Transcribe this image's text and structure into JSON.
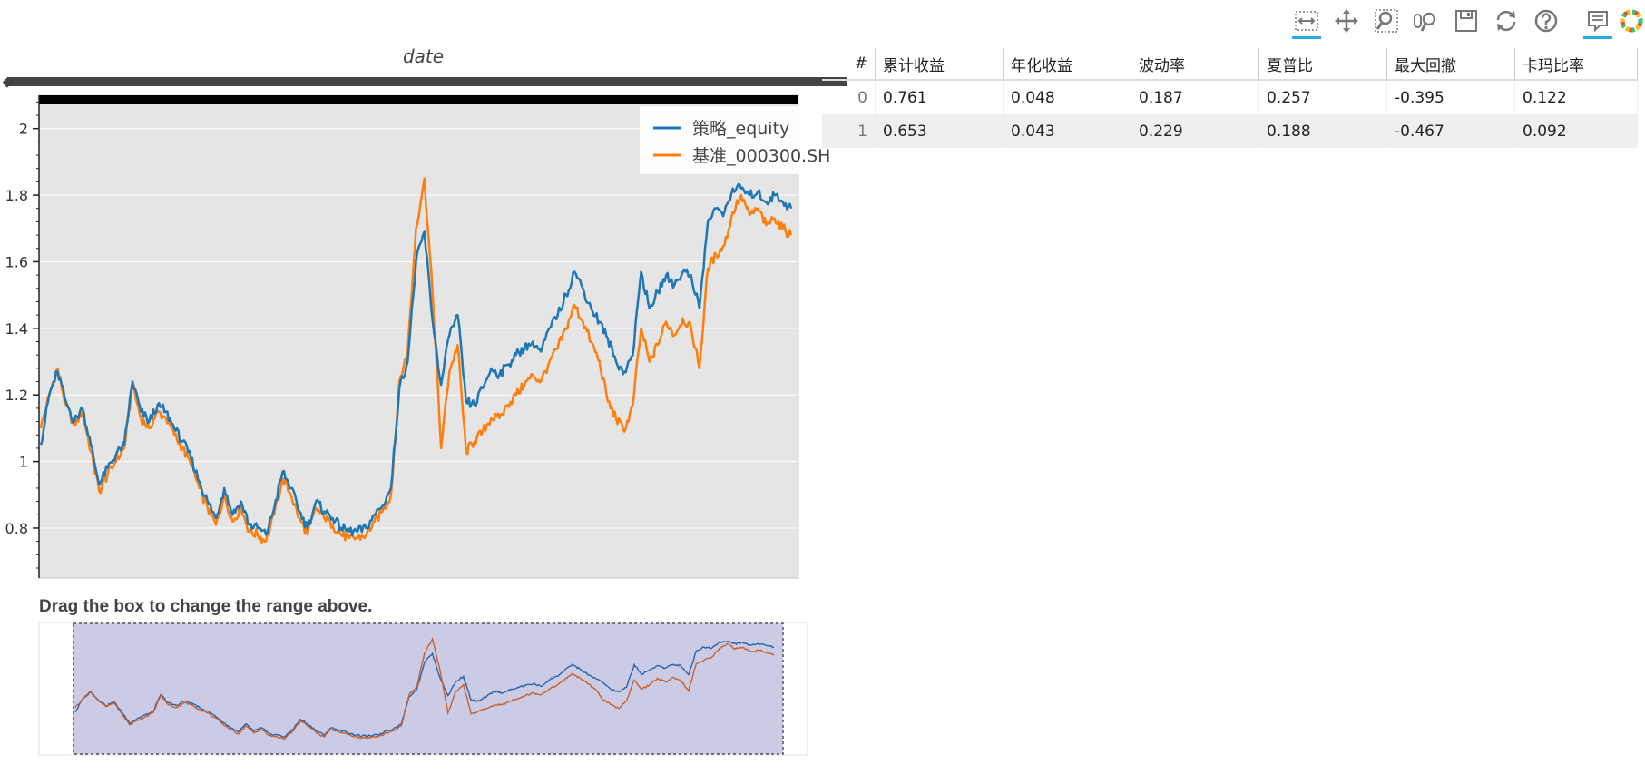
{
  "toolbar": {
    "tools": [
      {
        "icon": "xpan-icon",
        "active": true
      },
      {
        "icon": "pan-icon",
        "active": false
      },
      {
        "icon": "box-zoom-icon",
        "active": false
      },
      {
        "icon": "wheel-zoom-icon",
        "active": false
      },
      {
        "icon": "save-icon",
        "active": false
      },
      {
        "icon": "reset-icon",
        "active": false
      },
      {
        "icon": "help-icon",
        "active": false
      },
      {
        "icon": "hover-icon",
        "active": true
      },
      {
        "icon": "bokeh-logo",
        "active": false
      }
    ]
  },
  "chart": {
    "top_label": "date",
    "range_caption": "Drag the box to change the range above."
  },
  "colors": {
    "strategy": "#1f77b4",
    "benchmark": "#ff7f0e",
    "plot_background": "#e5e5e5",
    "range_box": "#cbcbe6"
  },
  "chart_data": {
    "type": "line",
    "ylim": [
      0.65,
      2.1
    ],
    "yticks": [
      "0.8",
      "1",
      "1.2",
      "1.4",
      "1.6",
      "1.8",
      "2"
    ],
    "legend_position": "top-right",
    "grid": true,
    "series": [
      {
        "name": "策略_equity",
        "color": "#1f77b4",
        "values": [
          1.05,
          1.2,
          1.27,
          1.18,
          1.12,
          1.16,
          1.05,
          0.93,
          0.98,
          1.02,
          1.05,
          1.24,
          1.15,
          1.12,
          1.17,
          1.15,
          1.1,
          1.06,
          1.01,
          0.94,
          0.88,
          0.83,
          0.92,
          0.84,
          0.88,
          0.81,
          0.8,
          0.78,
          0.86,
          0.97,
          0.92,
          0.85,
          0.8,
          0.88,
          0.85,
          0.83,
          0.8,
          0.79,
          0.79,
          0.8,
          0.84,
          0.87,
          0.92,
          1.22,
          1.3,
          1.6,
          1.69,
          1.42,
          1.23,
          1.38,
          1.44,
          1.18,
          1.17,
          1.22,
          1.28,
          1.26,
          1.29,
          1.32,
          1.34,
          1.36,
          1.33,
          1.4,
          1.44,
          1.5,
          1.57,
          1.52,
          1.46,
          1.42,
          1.37,
          1.3,
          1.27,
          1.32,
          1.57,
          1.46,
          1.51,
          1.56,
          1.53,
          1.57,
          1.56,
          1.46,
          1.72,
          1.76,
          1.75,
          1.82,
          1.82,
          1.8,
          1.81,
          1.78,
          1.8,
          1.78,
          1.76
        ]
      },
      {
        "name": "基准_000300.SH",
        "color": "#ff7f0e",
        "values": [
          1.1,
          1.2,
          1.28,
          1.17,
          1.11,
          1.15,
          1.03,
          0.91,
          0.96,
          1.0,
          1.04,
          1.23,
          1.13,
          1.1,
          1.15,
          1.13,
          1.08,
          1.04,
          0.99,
          0.92,
          0.86,
          0.81,
          0.9,
          0.82,
          0.86,
          0.79,
          0.78,
          0.76,
          0.84,
          0.95,
          0.9,
          0.83,
          0.78,
          0.86,
          0.83,
          0.81,
          0.78,
          0.77,
          0.77,
          0.78,
          0.82,
          0.85,
          0.9,
          1.24,
          1.33,
          1.7,
          1.85,
          1.5,
          1.04,
          1.27,
          1.35,
          1.03,
          1.06,
          1.09,
          1.13,
          1.13,
          1.17,
          1.2,
          1.23,
          1.26,
          1.24,
          1.3,
          1.34,
          1.4,
          1.47,
          1.42,
          1.36,
          1.3,
          1.18,
          1.13,
          1.09,
          1.17,
          1.4,
          1.3,
          1.35,
          1.42,
          1.38,
          1.43,
          1.4,
          1.28,
          1.58,
          1.62,
          1.65,
          1.75,
          1.8,
          1.74,
          1.76,
          1.71,
          1.73,
          1.7,
          1.68
        ]
      }
    ]
  },
  "table": {
    "columns": [
      "#",
      "累计收益",
      "年化收益",
      "波动率",
      "夏普比",
      "最大回撤",
      "卡玛比率"
    ],
    "rows": [
      [
        "0",
        "0.761",
        "0.048",
        "0.187",
        "0.257",
        "-0.395",
        "0.122"
      ],
      [
        "1",
        "0.653",
        "0.043",
        "0.229",
        "0.188",
        "-0.467",
        "0.092"
      ]
    ]
  }
}
